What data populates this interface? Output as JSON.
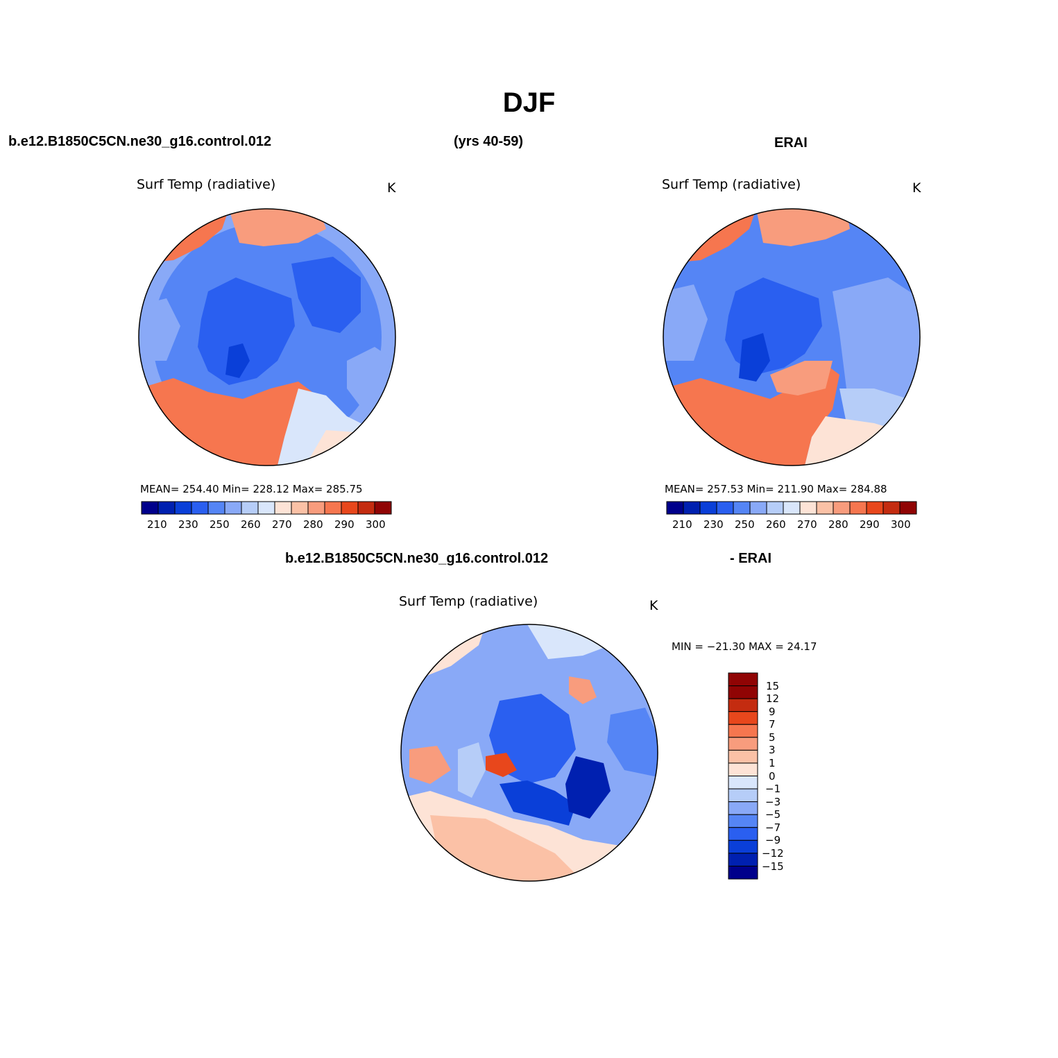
{
  "figure": {
    "title": "DJF",
    "left_case": "b.e12.B1850C5CN.ne30_g16.control.012",
    "years": "(yrs 40-59)",
    "right_case": "ERAI",
    "diff_case": "b.e12.B1850C5CN.ne30_g16.control.012",
    "diff_ref": "- ERAI"
  },
  "panels": [
    {
      "variable": "Surf Temp (radiative)",
      "units": "K",
      "stats": "MEAN= 254.40   Min= 228.12   Max= 285.75",
      "colorbar_labels": [
        "210",
        "230",
        "250",
        "260",
        "270",
        "280",
        "290",
        "300"
      ]
    },
    {
      "variable": "Surf Temp (radiative)",
      "units": "K",
      "stats": "MEAN= 257.53   Min= 211.90   Max= 284.88",
      "colorbar_labels": [
        "210",
        "230",
        "250",
        "260",
        "270",
        "280",
        "290",
        "300"
      ]
    },
    {
      "variable": "Surf Temp (radiative)",
      "units": "K",
      "stats": "MIN = −21.30 MAX =  24.17",
      "colorbar_labels": [
        "15",
        "12",
        "9",
        "7",
        "5",
        "3",
        "1",
        "0",
        "−1",
        "−3",
        "−5",
        "−7",
        "−9",
        "−12",
        "−15"
      ]
    }
  ],
  "colors": {
    "abs_scale": [
      "#00008b",
      "#0020b0",
      "#0a3fd8",
      "#2a5ff0",
      "#5585f5",
      "#89a9f7",
      "#b6cdf8",
      "#d9e6fb",
      "#fde3d6",
      "#fbc1a6",
      "#f89c7d",
      "#f6764f",
      "#e8471c",
      "#c42c10",
      "#900404"
    ],
    "diff_scale": [
      "#00008b",
      "#0020b0",
      "#0a3fd8",
      "#2a5ff0",
      "#5585f5",
      "#89a9f7",
      "#b6cdf8",
      "#d9e6fb",
      "#fde3d6",
      "#fbc1a6",
      "#f89c7d",
      "#f6764f",
      "#e8471c",
      "#c42c10",
      "#900404"
    ],
    "land_outline": "#000000"
  }
}
